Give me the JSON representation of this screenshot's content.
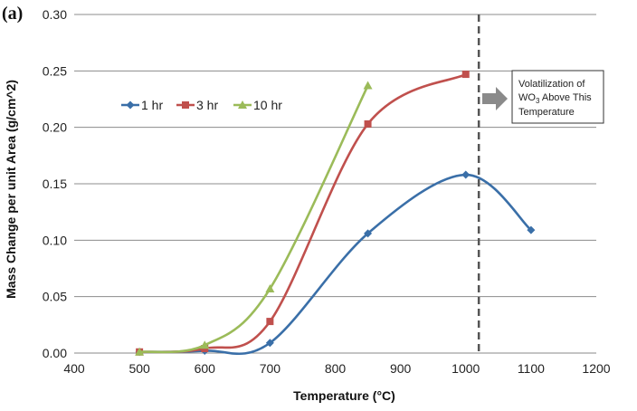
{
  "figure": {
    "panel_label": "(a)"
  },
  "chart_data": {
    "type": "line",
    "xlabel": "Temperature (°C)",
    "ylabel": "Mass Change per unit Area (g/cm^2)",
    "xlim": [
      400,
      1200
    ],
    "ylim": [
      0,
      0.3
    ],
    "x_ticks": [
      "400",
      "500",
      "600",
      "700",
      "800",
      "900",
      "1000",
      "1100",
      "1200"
    ],
    "y_ticks": [
      "0.00",
      "0.05",
      "0.10",
      "0.15",
      "0.20",
      "0.25",
      "0.30"
    ],
    "grid": "horizontal",
    "legend_placement": "upper-left",
    "series": [
      {
        "name": "1 hr",
        "color": "#3a6fa8",
        "marker": "diamond",
        "points": [
          [
            500,
            0.001
          ],
          [
            600,
            0.002
          ],
          [
            700,
            0.009
          ],
          [
            850,
            0.106
          ],
          [
            1000,
            0.158
          ],
          [
            1100,
            0.109
          ]
        ]
      },
      {
        "name": "3 hr",
        "color": "#c0504d",
        "marker": "square",
        "points": [
          [
            500,
            0.001
          ],
          [
            600,
            0.004
          ],
          [
            700,
            0.028
          ],
          [
            850,
            0.203
          ],
          [
            1000,
            0.247
          ]
        ]
      },
      {
        "name": "10 hr",
        "color": "#9bbb59",
        "marker": "triangle",
        "points": [
          [
            500,
            0.001
          ],
          [
            600,
            0.007
          ],
          [
            700,
            0.057
          ],
          [
            850,
            0.237
          ]
        ]
      }
    ],
    "reference_line": {
      "x": 1020,
      "style": "dashed",
      "color": "#555555"
    },
    "annotation": {
      "line1": "Volatilization of",
      "line2_prefix": "WO",
      "line2_subscript": "3",
      "line2_suffix": " Above This",
      "line3": "Temperature",
      "arrow_color": "#8a8a8a"
    }
  }
}
